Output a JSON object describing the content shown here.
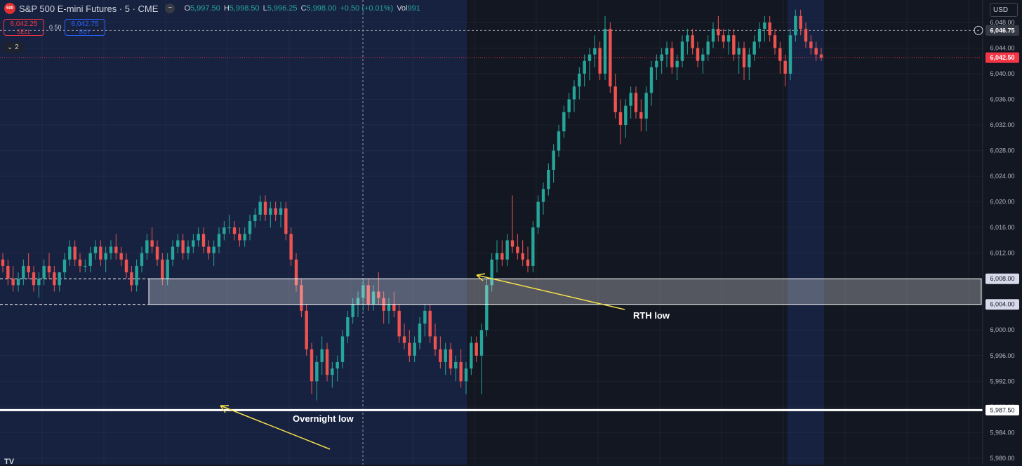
{
  "header": {
    "logo_text": "500",
    "title": "S&P 500 E-mini Futures · 5 · CME",
    "collapse_icon": "minus-icon",
    "open_label": "O",
    "open": "5,997.50",
    "high_label": "H",
    "high": "5,998.50",
    "low_label": "L",
    "low": "5,996.25",
    "close_label": "C",
    "close": "5,998.00",
    "change": "+0.50 (+0.01%)",
    "vol_label": "Vol",
    "vol": "991"
  },
  "trade": {
    "sell_price": "6,042.25",
    "sell_label": "SELL",
    "spread": "0.50",
    "buy_price": "6,042.75",
    "buy_label": "BUY"
  },
  "indicators_toggle": "⌄ 2",
  "currency": "USD",
  "price_axis": {
    "ticks": [
      "6,048.00",
      "6,044.00",
      "6,040.00",
      "6,036.00",
      "6,032.00",
      "6,028.00",
      "6,024.00",
      "6,020.00",
      "6,016.00",
      "6,012.00",
      "6,008.00",
      "6,004.00",
      "6,000.00",
      "5,996.00",
      "5,992.00",
      "5,988.00",
      "5,984.00",
      "5,980.00"
    ],
    "tick_values": [
      6048,
      6044,
      6040,
      6036,
      6032,
      6028,
      6024,
      6020,
      6016,
      6012,
      6008,
      6004,
      6000,
      5996,
      5992,
      5988,
      5984,
      5980
    ],
    "crosshair_price": "6,046.75",
    "crosshair_value": 6046.75,
    "last_price": "6,042.50",
    "last_value": 6042.5,
    "zone_top_label": "6,008.00",
    "zone_top": 6008,
    "zone_bottom_label": "6,004.00",
    "zone_bottom": 6004,
    "support_label": "5,987.50",
    "support": 5987.5
  },
  "annotations": {
    "rth_low": "RTH low",
    "overnight_low": "Overnight low"
  },
  "colors": {
    "bg": "#131722",
    "session_bg": "#172240",
    "up": "#26a69a",
    "down": "#ef5350",
    "zone": "#ffffff",
    "arrow": "#f7e04a",
    "last_price": "#f23645"
  },
  "tv_logo": "TV",
  "chart_data": {
    "type": "candlestick",
    "y_unit": "price",
    "ylim": [
      5979,
      6051.5
    ],
    "candles": [
      [
        6011,
        6012,
        6009,
        6010
      ],
      [
        6010,
        6011,
        6007,
        6008
      ],
      [
        6008,
        6010,
        6006,
        6007
      ],
      [
        6007,
        6009,
        6006,
        6008
      ],
      [
        6008,
        6011,
        6007,
        6010
      ],
      [
        6010,
        6012,
        6008,
        6009
      ],
      [
        6009,
        6010,
        6006,
        6007
      ],
      [
        6007,
        6009,
        6005,
        6008
      ],
      [
        6008,
        6011,
        6007,
        6010
      ],
      [
        6010,
        6012,
        6008,
        6009
      ],
      [
        6009,
        6010,
        6006,
        6007
      ],
      [
        6007,
        6009,
        6006,
        6009
      ],
      [
        6009,
        6012,
        6008,
        6011
      ],
      [
        6011,
        6014,
        6010,
        6013
      ],
      [
        6013,
        6014,
        6010,
        6011
      ],
      [
        6011,
        6012,
        6009,
        6010
      ],
      [
        6010,
        6011,
        6009,
        6010
      ],
      [
        6010,
        6013,
        6009,
        6012
      ],
      [
        6012,
        6014,
        6011,
        6013
      ],
      [
        6013,
        6014,
        6010,
        6011
      ],
      [
        6011,
        6013,
        6009,
        6012
      ],
      [
        6012,
        6014,
        6011,
        6013
      ],
      [
        6013,
        6015,
        6011,
        6012
      ],
      [
        6012,
        6013,
        6010,
        6011
      ],
      [
        6011,
        6012,
        6008,
        6009
      ],
      [
        6009,
        6010,
        6006,
        6007
      ],
      [
        6007,
        6011,
        6006,
        6010
      ],
      [
        6010,
        6013,
        6009,
        6012
      ],
      [
        6012,
        6015,
        6011,
        6014
      ],
      [
        6014,
        6016,
        6012,
        6013
      ],
      [
        6013,
        6014,
        6010,
        6011
      ],
      [
        6011,
        6012,
        6007,
        6008
      ],
      [
        6008,
        6012,
        6007,
        6011
      ],
      [
        6011,
        6014,
        6010,
        6013
      ],
      [
        6013,
        6015,
        6012,
        6014
      ],
      [
        6014,
        6015,
        6011,
        6012
      ],
      [
        6012,
        6014,
        6011,
        6013
      ],
      [
        6013,
        6015,
        6012,
        6014
      ],
      [
        6014,
        6016,
        6013,
        6015
      ],
      [
        6015,
        6016,
        6012,
        6013
      ],
      [
        6013,
        6014,
        6011,
        6012
      ],
      [
        6012,
        6014,
        6010,
        6013
      ],
      [
        6013,
        6016,
        6012,
        6015
      ],
      [
        6015,
        6017,
        6014,
        6016
      ],
      [
        6016,
        6018,
        6015,
        6016
      ],
      [
        6016,
        6017,
        6014,
        6015
      ],
      [
        6015,
        6016,
        6013,
        6014
      ],
      [
        6014,
        6016,
        6013,
        6015
      ],
      [
        6015,
        6018,
        6014,
        6017
      ],
      [
        6017,
        6019,
        6016,
        6018
      ],
      [
        6018,
        6021,
        6017,
        6020
      ],
      [
        6020,
        6021,
        6017,
        6018
      ],
      [
        6018,
        6020,
        6016,
        6019
      ],
      [
        6019,
        6020,
        6017,
        6018
      ],
      [
        6018,
        6020,
        6016,
        6019
      ],
      [
        6019,
        6020,
        6014,
        6015
      ],
      [
        6015,
        6016,
        6010,
        6011
      ],
      [
        6011,
        6012,
        6006,
        6007
      ],
      [
        6007,
        6008,
        6002,
        6003
      ],
      [
        6003,
        6004,
        5996,
        5997
      ],
      [
        5997,
        5998,
        5990,
        5992
      ],
      [
        5992,
        5996,
        5989,
        5995
      ],
      [
        5995,
        5999,
        5993,
        5997
      ],
      [
        5997,
        5998,
        5992,
        5993
      ],
      [
        5993,
        5995,
        5991,
        5994
      ],
      [
        5994,
        5996,
        5992,
        5995
      ],
      [
        5995,
        6000,
        5994,
        5999
      ],
      [
        5999,
        6003,
        5998,
        6002
      ],
      [
        6002,
        6005,
        6001,
        6004
      ],
      [
        6004,
        6006,
        6002,
        6005
      ],
      [
        6005,
        6008,
        6003,
        6007
      ],
      [
        6007,
        6008,
        6003,
        6004
      ],
      [
        6004,
        6007,
        6003,
        6006
      ],
      [
        6006,
        6009,
        6004,
        6005
      ],
      [
        6005,
        6006,
        6001,
        6003
      ],
      [
        6003,
        6005,
        6001,
        6004
      ],
      [
        6004,
        6006,
        6002,
        6003
      ],
      [
        6003,
        6004,
        5998,
        5999
      ],
      [
        5999,
        6001,
        5997,
        5998
      ],
      [
        5998,
        6000,
        5995,
        5996
      ],
      [
        5996,
        5999,
        5995,
        5998
      ],
      [
        5998,
        6002,
        5997,
        6001
      ],
      [
        6001,
        6004,
        5999,
        6003
      ],
      [
        6003,
        6004,
        5998,
        5999
      ],
      [
        5999,
        6001,
        5996,
        5997
      ],
      [
        5997,
        5999,
        5994,
        5995
      ],
      [
        5995,
        5998,
        5993,
        5997
      ],
      [
        5997,
        5998,
        5993,
        5994
      ],
      [
        5994,
        5996,
        5992,
        5995
      ],
      [
        5995,
        5997,
        5991,
        5992
      ],
      [
        5992,
        5995,
        5990,
        5994
      ],
      [
        5994,
        5999,
        5993,
        5998
      ],
      [
        5998,
        5999,
        5995,
        5996
      ],
      [
        5996,
        6001,
        5990,
        6000
      ],
      [
        6000,
        6008,
        5999,
        6007
      ],
      [
        6007,
        6012,
        6006,
        6011
      ],
      [
        6011,
        6014,
        6009,
        6012
      ],
      [
        6012,
        6014,
        6010,
        6011
      ],
      [
        6011,
        6015,
        6010,
        6014
      ],
      [
        6014,
        6021,
        6012,
        6013
      ],
      [
        6013,
        6015,
        6011,
        6012
      ],
      [
        6012,
        6014,
        6010,
        6011
      ],
      [
        6011,
        6013,
        6009,
        6010
      ],
      [
        6010,
        6017,
        6009,
        6016
      ],
      [
        6016,
        6021,
        6015,
        6020
      ],
      [
        6020,
        6023,
        6018,
        6022
      ],
      [
        6022,
        6026,
        6021,
        6025
      ],
      [
        6025,
        6029,
        6023,
        6028
      ],
      [
        6028,
        6032,
        6027,
        6031
      ],
      [
        6031,
        6035,
        6030,
        6034
      ],
      [
        6034,
        6037,
        6033,
        6036
      ],
      [
        6036,
        6039,
        6034,
        6038
      ],
      [
        6038,
        6041,
        6036,
        6040
      ],
      [
        6040,
        6043,
        6038,
        6042
      ],
      [
        6042,
        6044,
        6039,
        6043
      ],
      [
        6043,
        6046,
        6041,
        6044
      ],
      [
        6044,
        6045,
        6039,
        6040
      ],
      [
        6040,
        6049,
        6039,
        6047
      ],
      [
        6047,
        6048,
        6037,
        6038
      ],
      [
        6038,
        6040,
        6033,
        6034
      ],
      [
        6034,
        6036,
        6029,
        6032
      ],
      [
        6032,
        6036,
        6030,
        6035
      ],
      [
        6035,
        6038,
        6033,
        6037
      ],
      [
        6037,
        6038,
        6033,
        6034
      ],
      [
        6034,
        6036,
        6031,
        6033
      ],
      [
        6033,
        6038,
        6031,
        6037
      ],
      [
        6037,
        6042,
        6035,
        6041
      ],
      [
        6041,
        6043,
        6039,
        6042
      ],
      [
        6042,
        6044,
        6040,
        6043
      ],
      [
        6043,
        6045,
        6041,
        6044
      ],
      [
        6044,
        6045,
        6040,
        6041
      ],
      [
        6041,
        6043,
        6039,
        6042
      ],
      [
        6042,
        6046,
        6041,
        6045
      ],
      [
        6045,
        6047,
        6043,
        6046
      ],
      [
        6046,
        6047,
        6043,
        6044
      ],
      [
        6044,
        6045,
        6041,
        6042
      ],
      [
        6042,
        6044,
        6040,
        6043
      ],
      [
        6043,
        6046,
        6042,
        6045
      ],
      [
        6045,
        6048,
        6044,
        6047
      ],
      [
        6047,
        6049,
        6045,
        6046
      ],
      [
        6046,
        6047,
        6044,
        6045
      ],
      [
        6045,
        6047,
        6043,
        6046
      ],
      [
        6046,
        6047,
        6042,
        6043
      ],
      [
        6043,
        6045,
        6040,
        6044
      ],
      [
        6044,
        6045,
        6039,
        6041
      ],
      [
        6041,
        6044,
        6039,
        6043
      ],
      [
        6043,
        6046,
        6042,
        6045
      ],
      [
        6045,
        6048,
        6044,
        6047
      ],
      [
        6047,
        6049,
        6045,
        6048
      ],
      [
        6048,
        6049,
        6045,
        6046
      ],
      [
        6046,
        6047,
        6043,
        6044
      ],
      [
        6044,
        6045,
        6040,
        6042
      ],
      [
        6042,
        6043,
        6038,
        6040
      ],
      [
        6040,
        6047,
        6039,
        6046
      ],
      [
        6046,
        6050,
        6045,
        6049
      ],
      [
        6049,
        6050,
        6046,
        6047
      ],
      [
        6047,
        6048,
        6044,
        6045
      ],
      [
        6045,
        6046,
        6043,
        6044
      ],
      [
        6044,
        6045,
        6042,
        6043
      ],
      [
        6043,
        6044,
        6042,
        6042.5
      ]
    ]
  }
}
